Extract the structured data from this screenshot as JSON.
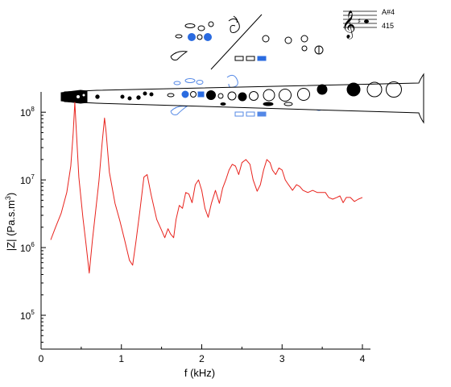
{
  "chart_data": {
    "type": "line",
    "title": "",
    "xlabel": "f (kHz)",
    "ylabel_prefix": "|Z| (Pa.s.m",
    "ylabel_sup": "3",
    "ylabel_suffix": ")",
    "xlim": [
      0,
      4
    ],
    "ylim_log10": [
      4.5,
      8.3
    ],
    "yscale": "log",
    "x_ticks": [
      {
        "value": 0,
        "label": "0"
      },
      {
        "value": 1,
        "label": "1"
      },
      {
        "value": 2,
        "label": "2"
      },
      {
        "value": 3,
        "label": "3"
      },
      {
        "value": 4,
        "label": "4"
      }
    ],
    "y_ticks": [
      {
        "exp": 5,
        "base": "10",
        "sup": "5"
      },
      {
        "exp": 6,
        "base": "10",
        "sup": "6"
      },
      {
        "exp": 7,
        "base": "10",
        "sup": "7"
      },
      {
        "exp": 8,
        "base": "10",
        "sup": "8"
      }
    ],
    "grid": false,
    "series": [
      {
        "color": "#e8221c",
        "x": [
          0.12,
          0.18,
          0.25,
          0.32,
          0.37,
          0.4,
          0.42,
          0.44,
          0.47,
          0.52,
          0.56,
          0.6,
          0.64,
          0.68,
          0.72,
          0.76,
          0.79,
          0.81,
          0.85,
          0.92,
          0.98,
          1.04,
          1.1,
          1.14,
          1.18,
          1.23,
          1.28,
          1.32,
          1.37,
          1.44,
          1.5,
          1.54,
          1.58,
          1.61,
          1.65,
          1.68,
          1.72,
          1.76,
          1.8,
          1.84,
          1.88,
          1.92,
          1.96,
          2.0,
          2.04,
          2.08,
          2.12,
          2.17,
          2.22,
          2.26,
          2.3,
          2.34,
          2.38,
          2.42,
          2.46,
          2.5,
          2.55,
          2.6,
          2.64,
          2.69,
          2.73,
          2.77,
          2.81,
          2.85,
          2.88,
          2.92,
          2.96,
          3.0,
          3.04,
          3.08,
          3.13,
          3.18,
          3.22,
          3.26,
          3.32,
          3.38,
          3.44,
          3.48,
          3.54,
          3.58,
          3.63,
          3.68,
          3.72,
          3.76,
          3.8,
          3.85,
          3.9,
          3.95,
          4.0
        ],
        "y": [
          1300000.0,
          2000000.0,
          3200000.0,
          6500000.0,
          16000000.0,
          50000000.0,
          140000000.0,
          50000000.0,
          11000000.0,
          2800000.0,
          1100000.0,
          420000.0,
          1300000.0,
          3500000.0,
          9500000.0,
          35000000.0,
          82000000.0,
          50000000.0,
          13000000.0,
          4500000.0,
          2500000.0,
          1300000.0,
          650000.0,
          550000.0,
          1200000.0,
          3500000.0,
          11000000.0,
          12000000.0,
          6000000.0,
          2600000.0,
          1800000.0,
          1400000.0,
          1900000.0,
          1600000.0,
          1400000.0,
          2600000.0,
          4200000.0,
          3800000.0,
          6500000.0,
          6200000.0,
          4600000.0,
          8500000.0,
          10000000.0,
          7000000.0,
          3800000.0,
          2800000.0,
          4500000.0,
          7000000.0,
          4500000.0,
          7500000.0,
          10000000.0,
          14000000.0,
          17000000.0,
          16000000.0,
          12000000.0,
          18000000.0,
          20000000.0,
          17000000.0,
          10000000.0,
          6800000.0,
          8500000.0,
          14000000.0,
          20000000.0,
          18000000.0,
          14000000.0,
          12000000.0,
          15000000.0,
          14000000.0,
          10000000.0,
          8500000.0,
          7000000.0,
          8500000.0,
          8000000.0,
          7000000.0,
          6500000.0,
          7000000.0,
          6500000.0,
          6500000.0,
          6500000.0,
          5500000.0,
          5200000.0,
          5500000.0,
          5800000.0,
          4600000.0,
          5500000.0,
          5500000.0,
          4800000.0,
          5200000.0,
          5500000.0
        ]
      }
    ]
  },
  "notation": {
    "note_name": "A#4",
    "frequency": "415"
  }
}
